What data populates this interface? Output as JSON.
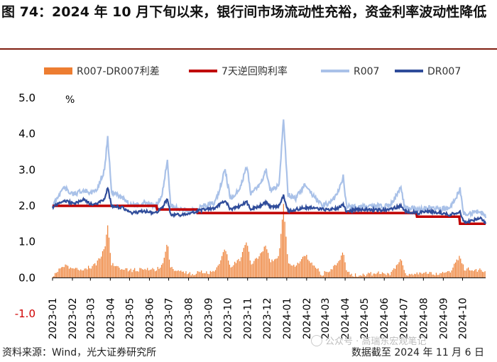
{
  "title": "图 74：2024 年 10 月下旬以来，银行间市场流动性充裕，资金利率波动性降低",
  "unit_label": "%",
  "footer": {
    "source": "资料来源：Wind，光大证券研究所",
    "date": "数据截至 2024 年 11 月 6 日"
  },
  "watermark": "公众号 · 高瑞东宏观笔记",
  "colors": {
    "spread": "#ED7D31",
    "reverse_repo": "#C00000",
    "r007": "#A9C1E8",
    "dr007": "#2F4C9A"
  },
  "chart_data": {
    "type": "line",
    "ylim": [
      -1.0,
      5.0
    ],
    "yticks": [
      "5.0",
      "4.0",
      "3.0",
      "2.0",
      "1.0",
      "0.0",
      "-1.0"
    ],
    "ytick_values": [
      5.0,
      4.0,
      3.0,
      2.0,
      1.0,
      0.0,
      -1.0
    ],
    "x_range": [
      "2023-01-01",
      "2024-11-06"
    ],
    "xticks": [
      "2023-01",
      "2023-02",
      "2023-03",
      "2023-04",
      "2023-05",
      "2023-06",
      "2023-07",
      "2023-08",
      "2023-09",
      "2023-10",
      "2023-11",
      "2023-12",
      "2024-01",
      "2024-02",
      "2024-03",
      "2024-04",
      "2024-05",
      "2024-06",
      "2024-07",
      "2024-08",
      "2024-09",
      "2024-10"
    ],
    "legend": [
      {
        "name": "R007-DR007利差",
        "kind": "bar",
        "color_key": "spread"
      },
      {
        "name": "7天逆回购利率",
        "kind": "line",
        "color_key": "reverse_repo"
      },
      {
        "name": "R007",
        "kind": "line",
        "color_key": "r007"
      },
      {
        "name": "DR007",
        "kind": "line",
        "color_key": "dr007"
      }
    ],
    "reverse_repo_steps": [
      {
        "from": "2023-01-01",
        "to": "2023-06-12",
        "value": 2.0
      },
      {
        "from": "2023-06-13",
        "to": "2023-08-14",
        "value": 1.9
      },
      {
        "from": "2023-08-15",
        "to": "2024-07-21",
        "value": 1.8
      },
      {
        "from": "2024-07-22",
        "to": "2024-09-26",
        "value": 1.7
      },
      {
        "from": "2024-09-27",
        "to": "2024-11-06",
        "value": 1.5
      }
    ],
    "anchors": [
      {
        "date": "2023-01-01",
        "r007": 2.0,
        "dr007": 1.95,
        "spread": 0.05
      },
      {
        "date": "2023-01-08",
        "r007": 2.2,
        "dr007": 2.05,
        "spread": 0.15
      },
      {
        "date": "2023-01-18",
        "r007": 2.5,
        "dr007": 2.15,
        "spread": 0.35
      },
      {
        "date": "2023-02-05",
        "r007": 2.3,
        "dr007": 2.05,
        "spread": 0.25
      },
      {
        "date": "2023-02-18",
        "r007": 2.45,
        "dr007": 2.2,
        "spread": 0.25
      },
      {
        "date": "2023-03-01",
        "r007": 2.35,
        "dr007": 2.05,
        "spread": 0.3
      },
      {
        "date": "2023-03-10",
        "r007": 2.4,
        "dr007": 2.05,
        "spread": 0.35
      },
      {
        "date": "2023-03-23",
        "r007": 3.0,
        "dr007": 2.2,
        "spread": 0.8
      },
      {
        "date": "2023-03-28",
        "r007": 3.9,
        "dr007": 2.5,
        "spread": 1.4
      },
      {
        "date": "2023-04-03",
        "r007": 2.4,
        "dr007": 2.0,
        "spread": 0.4
      },
      {
        "date": "2023-04-20",
        "r007": 2.2,
        "dr007": 1.95,
        "spread": 0.25
      },
      {
        "date": "2023-05-05",
        "r007": 2.0,
        "dr007": 1.8,
        "spread": 0.2
      },
      {
        "date": "2023-05-25",
        "r007": 2.1,
        "dr007": 1.85,
        "spread": 0.25
      },
      {
        "date": "2023-06-10",
        "r007": 2.0,
        "dr007": 1.8,
        "spread": 0.2
      },
      {
        "date": "2023-06-21",
        "r007": 2.3,
        "dr007": 1.95,
        "spread": 0.35
      },
      {
        "date": "2023-06-29",
        "r007": 3.3,
        "dr007": 2.2,
        "spread": 1.0
      },
      {
        "date": "2023-07-04",
        "r007": 2.0,
        "dr007": 1.75,
        "spread": 0.25
      },
      {
        "date": "2023-07-20",
        "r007": 1.9,
        "dr007": 1.75,
        "spread": 0.15
      },
      {
        "date": "2023-08-05",
        "r007": 1.85,
        "dr007": 1.8,
        "spread": 0.1
      },
      {
        "date": "2023-08-25",
        "r007": 2.0,
        "dr007": 1.9,
        "spread": 0.15
      },
      {
        "date": "2023-09-12",
        "r007": 2.1,
        "dr007": 1.95,
        "spread": 0.15
      },
      {
        "date": "2023-09-27",
        "r007": 3.0,
        "dr007": 2.15,
        "spread": 0.85
      },
      {
        "date": "2023-10-05",
        "r007": 2.2,
        "dr007": 1.9,
        "spread": 0.3
      },
      {
        "date": "2023-10-20",
        "r007": 2.5,
        "dr007": 2.0,
        "spread": 0.5
      },
      {
        "date": "2023-10-31",
        "r007": 3.1,
        "dr007": 2.1,
        "spread": 1.0
      },
      {
        "date": "2023-11-06",
        "r007": 2.3,
        "dr007": 1.9,
        "spread": 0.4
      },
      {
        "date": "2023-11-20",
        "r007": 2.6,
        "dr007": 2.0,
        "spread": 0.6
      },
      {
        "date": "2023-11-30",
        "r007": 3.0,
        "dr007": 2.1,
        "spread": 0.9
      },
      {
        "date": "2023-12-07",
        "r007": 2.4,
        "dr007": 1.95,
        "spread": 0.45
      },
      {
        "date": "2023-12-20",
        "r007": 2.6,
        "dr007": 2.0,
        "spread": 0.6
      },
      {
        "date": "2023-12-27",
        "r007": 4.4,
        "dr007": 2.3,
        "spread": 2.0
      },
      {
        "date": "2024-01-03",
        "r007": 2.3,
        "dr007": 1.85,
        "spread": 0.45
      },
      {
        "date": "2024-01-15",
        "r007": 2.2,
        "dr007": 1.9,
        "spread": 0.3
      },
      {
        "date": "2024-01-29",
        "r007": 2.6,
        "dr007": 1.95,
        "spread": 0.65
      },
      {
        "date": "2024-02-10",
        "r007": 2.3,
        "dr007": 1.95,
        "spread": 0.35
      },
      {
        "date": "2024-02-25",
        "r007": 2.0,
        "dr007": 1.9,
        "spread": 0.1
      },
      {
        "date": "2024-03-10",
        "r007": 2.1,
        "dr007": 1.9,
        "spread": 0.2
      },
      {
        "date": "2024-03-22",
        "r007": 2.4,
        "dr007": 1.95,
        "spread": 0.45
      },
      {
        "date": "2024-03-29",
        "r007": 2.8,
        "dr007": 2.05,
        "spread": 0.75
      },
      {
        "date": "2024-04-03",
        "r007": 2.0,
        "dr007": 1.85,
        "spread": 0.15
      },
      {
        "date": "2024-04-20",
        "r007": 1.95,
        "dr007": 1.9,
        "spread": 0.05
      },
      {
        "date": "2024-05-05",
        "r007": 2.0,
        "dr007": 1.9,
        "spread": 0.1
      },
      {
        "date": "2024-05-25",
        "r007": 2.0,
        "dr007": 1.88,
        "spread": 0.12
      },
      {
        "date": "2024-06-10",
        "r007": 2.0,
        "dr007": 1.9,
        "spread": 0.1
      },
      {
        "date": "2024-06-27",
        "r007": 2.5,
        "dr007": 2.0,
        "spread": 0.5
      },
      {
        "date": "2024-07-03",
        "r007": 1.95,
        "dr007": 1.85,
        "spread": 0.1
      },
      {
        "date": "2024-07-25",
        "r007": 1.9,
        "dr007": 1.8,
        "spread": 0.1
      },
      {
        "date": "2024-08-10",
        "r007": 1.95,
        "dr007": 1.85,
        "spread": 0.1
      },
      {
        "date": "2024-08-28",
        "r007": 1.9,
        "dr007": 1.8,
        "spread": 0.1
      },
      {
        "date": "2024-09-12",
        "r007": 1.95,
        "dr007": 1.75,
        "spread": 0.2
      },
      {
        "date": "2024-09-27",
        "r007": 2.45,
        "dr007": 1.85,
        "spread": 0.6
      },
      {
        "date": "2024-10-03",
        "r007": 1.8,
        "dr007": 1.55,
        "spread": 0.25
      },
      {
        "date": "2024-10-18",
        "r007": 1.8,
        "dr007": 1.6,
        "spread": 0.2
      },
      {
        "date": "2024-10-30",
        "r007": 1.85,
        "dr007": 1.65,
        "spread": 0.2
      },
      {
        "date": "2024-11-06",
        "r007": 1.7,
        "dr007": 1.5,
        "spread": 0.2
      }
    ]
  }
}
